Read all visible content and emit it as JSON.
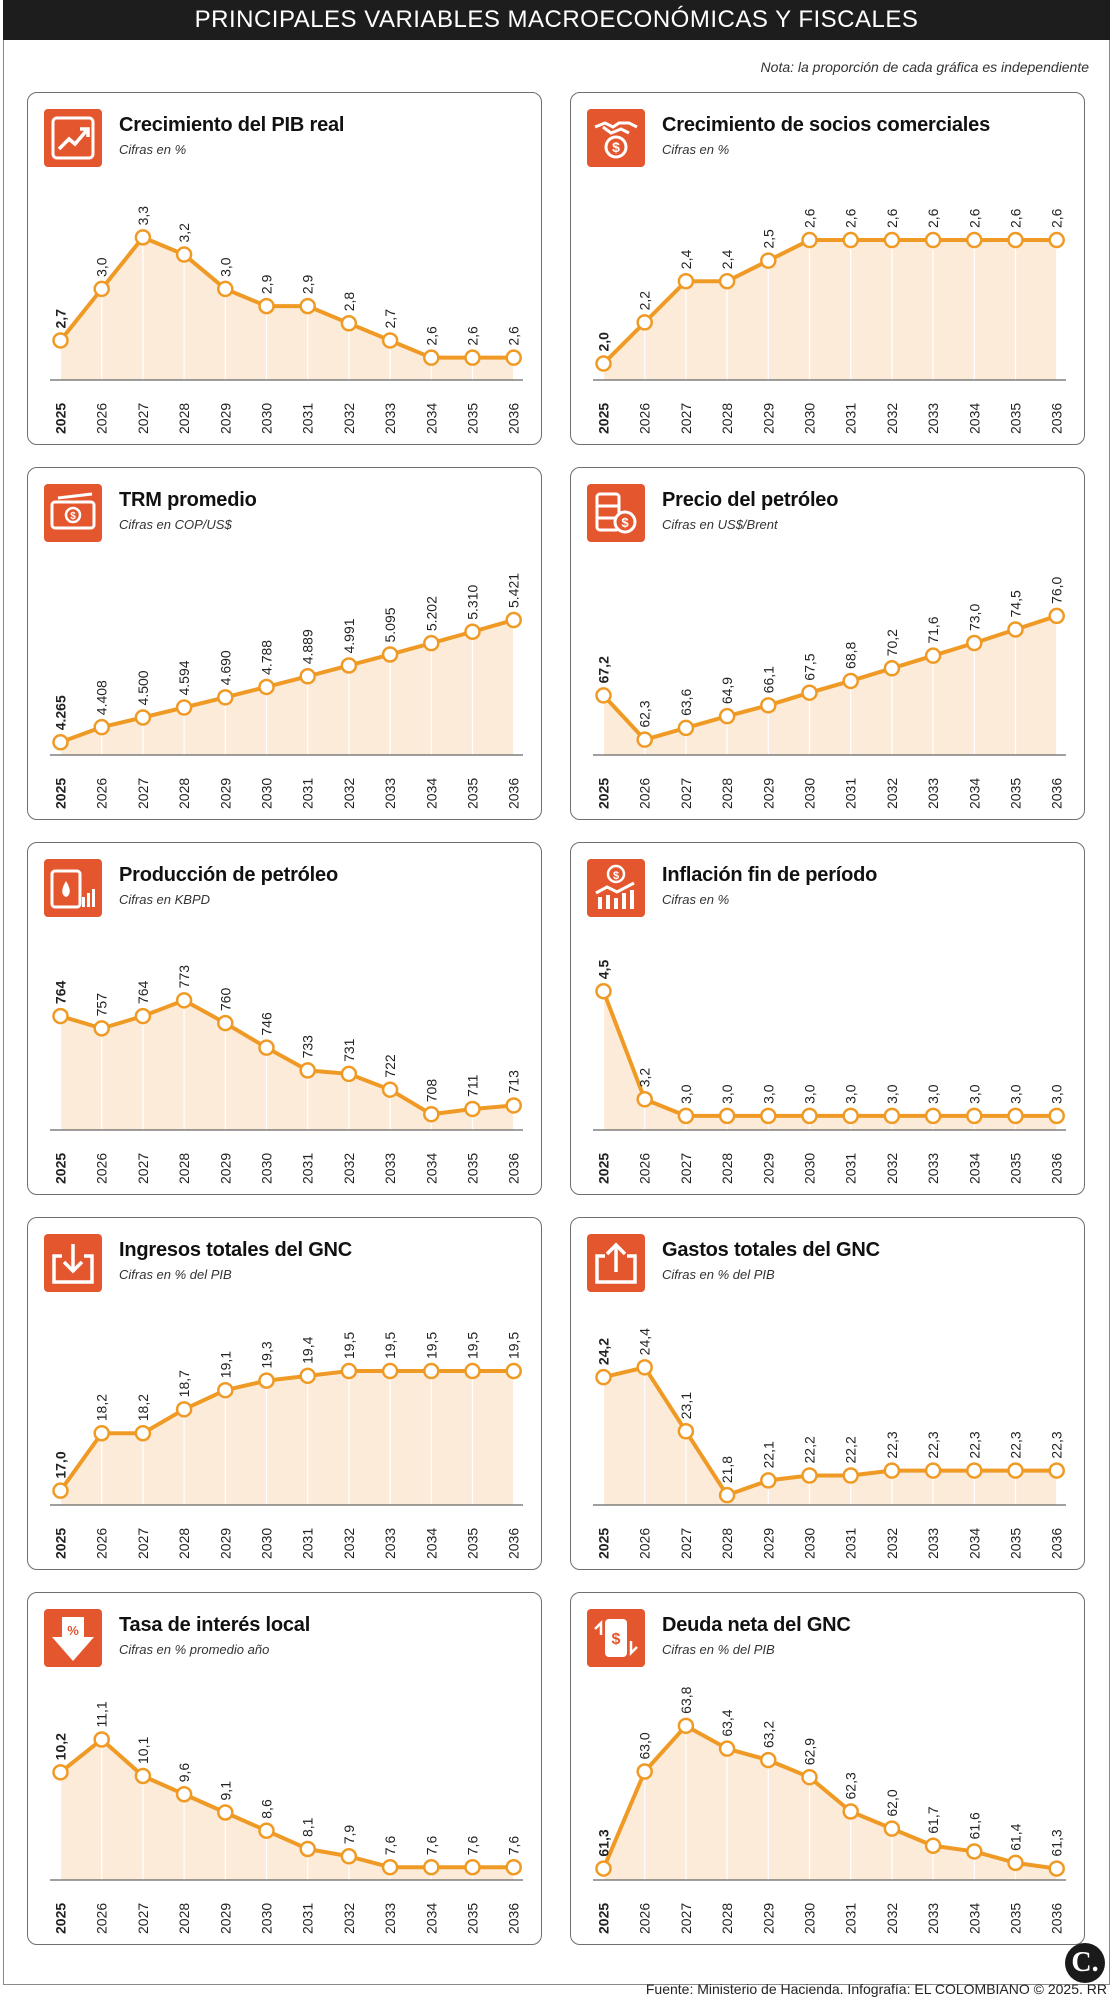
{
  "header": {
    "title": "PRINCIPALES VARIABLES MACROECONÓMICAS Y FISCALES"
  },
  "note": "Nota: la proporción de cada gráfica es independiente",
  "footer": {
    "source": "Fuente: Ministerio de Hacienda. Infografía: EL COLOMBIANO © 2025. RR",
    "logo": "C."
  },
  "colors": {
    "accent": "#e4572e",
    "line": "#f09a26",
    "fill": "#fdebd9"
  },
  "chart_data": [
    {
      "type": "line",
      "title": "Crecimiento del PIB real",
      "subtitle": "Cifras en %",
      "icon": "chart-growth-icon",
      "x": [
        "2025",
        "2026",
        "2027",
        "2028",
        "2029",
        "2030",
        "2031",
        "2032",
        "2033",
        "2034",
        "2035",
        "2036"
      ],
      "values": [
        2.7,
        3.0,
        3.3,
        3.2,
        3.0,
        2.9,
        2.9,
        2.8,
        2.7,
        2.6,
        2.6,
        2.6
      ],
      "labels": [
        "2,7",
        "3,0",
        "3,3",
        "3,2",
        "3,0",
        "2,9",
        "2,9",
        "2,8",
        "2,7",
        "2,6",
        "2,6",
        "2,6"
      ],
      "ylim": [
        2.47,
        3.5
      ]
    },
    {
      "type": "line",
      "title": "Crecimiento de socios comerciales",
      "subtitle": "Cifras en %",
      "icon": "handshake-dollar-icon",
      "x": [
        "2025",
        "2026",
        "2027",
        "2028",
        "2029",
        "2030",
        "2031",
        "2032",
        "2033",
        "2034",
        "2035",
        "2036"
      ],
      "values": [
        2.0,
        2.2,
        2.4,
        2.4,
        2.5,
        2.6,
        2.6,
        2.6,
        2.6,
        2.6,
        2.6,
        2.6
      ],
      "labels": [
        "2,0",
        "2,2",
        "2,4",
        "2,4",
        "2,5",
        "2,6",
        "2,6",
        "2,6",
        "2,6",
        "2,6",
        "2,6",
        "2,6"
      ],
      "ylim": [
        1.92,
        2.78
      ]
    },
    {
      "type": "line",
      "title": "TRM promedio",
      "subtitle": "Cifras en COP/US$",
      "icon": "banknote-icon",
      "x": [
        "2025",
        "2026",
        "2027",
        "2028",
        "2029",
        "2030",
        "2031",
        "2032",
        "2033",
        "2034",
        "2035",
        "2036"
      ],
      "values": [
        4265,
        4408,
        4500,
        4594,
        4690,
        4788,
        4889,
        4991,
        5095,
        5202,
        5310,
        5421
      ],
      "labels": [
        "4.265",
        "4.408",
        "4.500",
        "4.594",
        "4.690",
        "4.788",
        "4.889",
        "4.991",
        "5.095",
        "5.202",
        "5.310",
        "5.421"
      ],
      "ylim": [
        4145,
        5818
      ]
    },
    {
      "type": "line",
      "title": "Precio del petróleo",
      "subtitle": "Cifras en US$/Brent",
      "icon": "oil-price-icon",
      "x": [
        "2025",
        "2026",
        "2027",
        "2028",
        "2029",
        "2030",
        "2031",
        "2032",
        "2033",
        "2034",
        "2035",
        "2036"
      ],
      "values": [
        67.2,
        62.3,
        63.6,
        64.9,
        66.1,
        67.5,
        68.8,
        70.2,
        71.6,
        73.0,
        74.5,
        76.0
      ],
      "labels": [
        "67,2",
        "62,3",
        "63,6",
        "64,9",
        "66,1",
        "67,5",
        "68,8",
        "70,2",
        "71,6",
        "73,0",
        "74,5",
        "76,0"
      ],
      "ylim": [
        60.6,
        80.2
      ]
    },
    {
      "type": "line",
      "title": "Producción de petróleo",
      "subtitle": "Cifras en KBPD",
      "icon": "oil-barrel-icon",
      "x": [
        "2025",
        "2026",
        "2027",
        "2028",
        "2029",
        "2030",
        "2031",
        "2032",
        "2033",
        "2034",
        "2035",
        "2036"
      ],
      "values": [
        764,
        757,
        764,
        773,
        760,
        746,
        733,
        731,
        722,
        708,
        711,
        713
      ],
      "labels": [
        "764",
        "757",
        "764",
        "773",
        "760",
        "746",
        "733",
        "731",
        "722",
        "708",
        "711",
        "713"
      ],
      "ylim": [
        699,
        800
      ]
    },
    {
      "type": "line",
      "title": "Inflación fin de período",
      "subtitle": "Cifras en %",
      "icon": "inflation-chart-icon",
      "x": [
        "2025",
        "2026",
        "2027",
        "2028",
        "2029",
        "2030",
        "2031",
        "2032",
        "2033",
        "2034",
        "2035",
        "2036"
      ],
      "values": [
        4.5,
        3.2,
        3.0,
        3.0,
        3.0,
        3.0,
        3.0,
        3.0,
        3.0,
        3.0,
        3.0,
        3.0
      ],
      "labels": [
        "4,5",
        "3,2",
        "3,0",
        "3,0",
        "3,0",
        "3,0",
        "3,0",
        "3,0",
        "3,0",
        "3,0",
        "3,0",
        "3,0"
      ],
      "ylim": [
        2.83,
        4.96
      ]
    },
    {
      "type": "line",
      "title": "Ingresos totales del GNC",
      "subtitle": "Cifras en % del PIB",
      "icon": "income-tray-icon",
      "x": [
        "2025",
        "2026",
        "2027",
        "2028",
        "2029",
        "2030",
        "2031",
        "2032",
        "2033",
        "2034",
        "2035",
        "2036"
      ],
      "values": [
        17.0,
        18.2,
        18.2,
        18.7,
        19.1,
        19.3,
        19.4,
        19.5,
        19.5,
        19.5,
        19.5,
        19.5
      ],
      "labels": [
        "17,0",
        "18,2",
        "18,2",
        "18,7",
        "19,1",
        "19,3",
        "19,4",
        "19,5",
        "19,5",
        "19,5",
        "19,5",
        "19,5"
      ],
      "ylim": [
        16.7,
        20.4
      ]
    },
    {
      "type": "line",
      "title": "Gastos totales del GNC",
      "subtitle": "Cifras en % del PIB",
      "icon": "expense-tray-icon",
      "x": [
        "2025",
        "2026",
        "2027",
        "2028",
        "2029",
        "2030",
        "2031",
        "2032",
        "2033",
        "2034",
        "2035",
        "2036"
      ],
      "values": [
        24.2,
        24.4,
        23.1,
        21.8,
        22.1,
        22.2,
        22.2,
        22.3,
        22.3,
        22.3,
        22.3,
        22.3
      ],
      "labels": [
        "24,2",
        "24,4",
        "23,1",
        "21,8",
        "22,1",
        "22,2",
        "22,2",
        "22,3",
        "22,3",
        "22,3",
        "22,3",
        "22,3"
      ],
      "ylim": [
        21.6,
        25.2
      ]
    },
    {
      "type": "line",
      "title": "Tasa de interés local",
      "subtitle": "Cifras en % promedio año",
      "icon": "interest-down-icon",
      "x": [
        "2025",
        "2026",
        "2027",
        "2028",
        "2029",
        "2030",
        "2031",
        "2032",
        "2033",
        "2034",
        "2035",
        "2036"
      ],
      "values": [
        10.2,
        11.1,
        10.1,
        9.6,
        9.1,
        8.6,
        8.1,
        7.9,
        7.6,
        7.6,
        7.6,
        7.6
      ],
      "labels": [
        "10,2",
        "11,1",
        "10,1",
        "9,6",
        "9,1",
        "8,6",
        "8,1",
        "7,9",
        "7,6",
        "7,6",
        "7,6",
        "7,6"
      ],
      "ylim": [
        7.25,
        12.1
      ]
    },
    {
      "type": "line",
      "title": "Deuda neta del GNC",
      "subtitle": "Cifras en % del PIB",
      "icon": "debt-document-icon",
      "x": [
        "2025",
        "2026",
        "2027",
        "2028",
        "2029",
        "2030",
        "2031",
        "2032",
        "2033",
        "2034",
        "2035",
        "2036"
      ],
      "values": [
        61.3,
        63.0,
        63.8,
        63.4,
        63.2,
        62.9,
        62.3,
        62.0,
        61.7,
        61.6,
        61.4,
        61.3
      ],
      "labels": [
        "61,3",
        "63,0",
        "63,8",
        "63,4",
        "63,2",
        "62,9",
        "62,3",
        "62,0",
        "61,7",
        "61,6",
        "61,4",
        "61,3"
      ],
      "ylim": [
        61.1,
        64.2
      ]
    }
  ]
}
